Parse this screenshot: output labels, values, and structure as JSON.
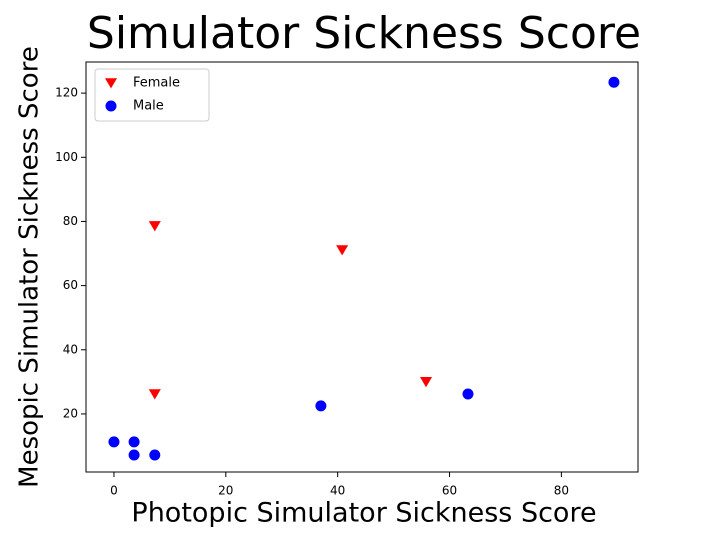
{
  "chart_data": {
    "type": "scatter",
    "title": "Simulator Sickness Score",
    "x_label": "Photopic Simulator Sickness Score",
    "y_label": "Mesopic Simulator Sickness Score",
    "xlim": [
      -5,
      93.7
    ],
    "ylim": [
      1.9,
      129.7
    ],
    "xticks": [
      0,
      20,
      40,
      60,
      80
    ],
    "yticks": [
      20,
      40,
      60,
      80,
      100,
      120
    ],
    "legend": "upper left",
    "series": [
      {
        "name": "Female",
        "color": "#ff0000",
        "marker": "triangle-down",
        "x": [
          7.3,
          40.8,
          55.8,
          7.3
        ],
        "values": [
          78.6,
          71.1,
          30.0,
          26.2
        ]
      },
      {
        "name": "Male",
        "color": "#0000ff",
        "marker": "circle",
        "x": [
          0,
          3.6,
          3.6,
          7.3,
          37.0,
          63.3,
          89.4
        ],
        "values": [
          11.3,
          11.3,
          7.2,
          7.2,
          22.5,
          26.2,
          123.4
        ]
      }
    ]
  }
}
